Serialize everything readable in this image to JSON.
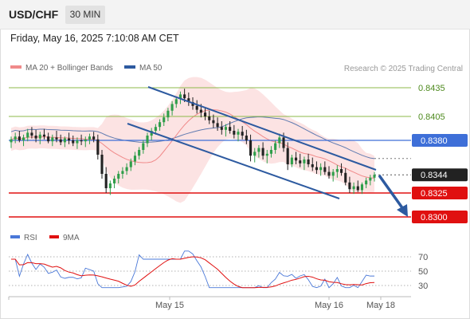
{
  "header": {
    "symbol": "USD/CHF",
    "timeframe": "30 MIN"
  },
  "datetime": "Friday, May 16, 2025 7:10:08 AM CET",
  "legend": {
    "ma20": "MA 20 + Bollinger Bands",
    "ma50": "MA 50",
    "rsi": "RSI",
    "ma9": "9MA"
  },
  "credit": "Research © 2025 Trading Central",
  "colors": {
    "ma20": "#f08a8a",
    "ma50": "#2d5aa0",
    "bands": "#fbdada",
    "target": "#8db84a",
    "pivot": "#3e6fd8",
    "support": "#e01010",
    "last": "#222222",
    "candle_up": "#2f9e4a",
    "candle_down": "#222222"
  },
  "chart_data": {
    "type": "candlestick",
    "instrument": "USD/CHF",
    "timeframe": "30 MIN",
    "y_range": [
      0.829,
      0.8445
    ],
    "price_levels": [
      {
        "label": "0.8435",
        "value": 0.8435,
        "kind": "target"
      },
      {
        "label": "0.8405",
        "value": 0.8405,
        "kind": "target"
      },
      {
        "label": "0.8380",
        "value": 0.838,
        "kind": "pivot"
      },
      {
        "label": "0.8344",
        "value": 0.8344,
        "kind": "last"
      },
      {
        "label": "0.8325",
        "value": 0.8325,
        "kind": "support"
      },
      {
        "label": "0.8300",
        "value": 0.83,
        "kind": "support"
      }
    ],
    "x_tick_labels": [
      "May 15",
      "May 16",
      "May 18"
    ],
    "rsi_ticks": [
      "70",
      "50",
      "30"
    ],
    "candles": [
      [
        0.8378,
        0.8384,
        0.8372,
        0.8381
      ],
      [
        0.8381,
        0.8388,
        0.8377,
        0.8384
      ],
      [
        0.8384,
        0.839,
        0.8378,
        0.838
      ],
      [
        0.838,
        0.8386,
        0.8374,
        0.8383
      ],
      [
        0.8383,
        0.8392,
        0.8379,
        0.8388
      ],
      [
        0.8388,
        0.8394,
        0.8382,
        0.8385
      ],
      [
        0.8385,
        0.8391,
        0.8378,
        0.8382
      ],
      [
        0.8382,
        0.8389,
        0.8376,
        0.8386
      ],
      [
        0.8386,
        0.8392,
        0.8381,
        0.8384
      ],
      [
        0.8384,
        0.8388,
        0.8377,
        0.8379
      ],
      [
        0.8379,
        0.8386,
        0.8374,
        0.8383
      ],
      [
        0.8383,
        0.839,
        0.8378,
        0.8381
      ],
      [
        0.8381,
        0.8386,
        0.8375,
        0.8378
      ],
      [
        0.8378,
        0.8384,
        0.8373,
        0.8382
      ],
      [
        0.8382,
        0.8388,
        0.8376,
        0.838
      ],
      [
        0.838,
        0.8385,
        0.8374,
        0.8377
      ],
      [
        0.8377,
        0.8383,
        0.8371,
        0.838
      ],
      [
        0.838,
        0.8386,
        0.8375,
        0.8379
      ],
      [
        0.8379,
        0.8384,
        0.8373,
        0.8381
      ],
      [
        0.8381,
        0.8387,
        0.8376,
        0.8384
      ],
      [
        0.8384,
        0.8389,
        0.8378,
        0.8381
      ],
      [
        0.8381,
        0.8386,
        0.836,
        0.8365
      ],
      [
        0.8365,
        0.837,
        0.834,
        0.8345
      ],
      [
        0.8345,
        0.8352,
        0.8325,
        0.833
      ],
      [
        0.833,
        0.8338,
        0.8323,
        0.8335
      ],
      [
        0.8335,
        0.8343,
        0.833,
        0.834
      ],
      [
        0.834,
        0.8348,
        0.8335,
        0.8345
      ],
      [
        0.8345,
        0.8352,
        0.834,
        0.8348
      ],
      [
        0.8348,
        0.8356,
        0.8344,
        0.8352
      ],
      [
        0.8352,
        0.8361,
        0.8348,
        0.8358
      ],
      [
        0.8358,
        0.8368,
        0.8354,
        0.8364
      ],
      [
        0.8364,
        0.8373,
        0.836,
        0.837
      ],
      [
        0.837,
        0.838,
        0.8366,
        0.8377
      ],
      [
        0.8377,
        0.8388,
        0.8373,
        0.8385
      ],
      [
        0.8385,
        0.8393,
        0.838,
        0.839
      ],
      [
        0.839,
        0.8397,
        0.8386,
        0.8394
      ],
      [
        0.8394,
        0.8402,
        0.839,
        0.8399
      ],
      [
        0.8399,
        0.8408,
        0.8395,
        0.8404
      ],
      [
        0.8404,
        0.8414,
        0.84,
        0.8411
      ],
      [
        0.8411,
        0.8421,
        0.8406,
        0.8418
      ],
      [
        0.8418,
        0.8426,
        0.8414,
        0.8423
      ],
      [
        0.8423,
        0.8431,
        0.8418,
        0.8428
      ],
      [
        0.8428,
        0.8434,
        0.842,
        0.8424
      ],
      [
        0.8424,
        0.843,
        0.8416,
        0.842
      ],
      [
        0.842,
        0.8425,
        0.8412,
        0.8416
      ],
      [
        0.8416,
        0.8422,
        0.8408,
        0.8412
      ],
      [
        0.8412,
        0.8418,
        0.8404,
        0.8409
      ],
      [
        0.8409,
        0.8415,
        0.8401,
        0.8405
      ],
      [
        0.8405,
        0.8411,
        0.8397,
        0.8401
      ],
      [
        0.8401,
        0.8407,
        0.8393,
        0.8398
      ],
      [
        0.8398,
        0.8404,
        0.839,
        0.8394
      ],
      [
        0.8394,
        0.84,
        0.8386,
        0.8391
      ],
      [
        0.8391,
        0.8397,
        0.8384,
        0.8394
      ],
      [
        0.8394,
        0.84,
        0.8387,
        0.839
      ],
      [
        0.839,
        0.8396,
        0.8382,
        0.8386
      ],
      [
        0.8386,
        0.8392,
        0.8379,
        0.8389
      ],
      [
        0.8389,
        0.8395,
        0.8381,
        0.8385
      ],
      [
        0.8385,
        0.8391,
        0.8376,
        0.838
      ],
      [
        0.838,
        0.8386,
        0.8358,
        0.8364
      ],
      [
        0.8364,
        0.8372,
        0.8357,
        0.8368
      ],
      [
        0.8368,
        0.8375,
        0.8362,
        0.8372
      ],
      [
        0.8372,
        0.8378,
        0.836,
        0.8364
      ],
      [
        0.8364,
        0.837,
        0.8356,
        0.8366
      ],
      [
        0.8366,
        0.8374,
        0.8362,
        0.837
      ],
      [
        0.837,
        0.838,
        0.8366,
        0.8377
      ],
      [
        0.8377,
        0.8387,
        0.8372,
        0.8383
      ],
      [
        0.8383,
        0.8388,
        0.8368,
        0.8372
      ],
      [
        0.8372,
        0.8378,
        0.8349,
        0.8355
      ],
      [
        0.8355,
        0.8365,
        0.8352,
        0.8362
      ],
      [
        0.8362,
        0.8368,
        0.8355,
        0.8359
      ],
      [
        0.8359,
        0.8366,
        0.8352,
        0.8356
      ],
      [
        0.8356,
        0.8363,
        0.8349,
        0.836
      ],
      [
        0.836,
        0.8366,
        0.8352,
        0.8355
      ],
      [
        0.8355,
        0.8362,
        0.8348,
        0.8352
      ],
      [
        0.8352,
        0.8358,
        0.8345,
        0.8349
      ],
      [
        0.8349,
        0.8356,
        0.8343,
        0.8352
      ],
      [
        0.8352,
        0.8358,
        0.8344,
        0.8347
      ],
      [
        0.8347,
        0.8353,
        0.834,
        0.8343
      ],
      [
        0.8343,
        0.835,
        0.8337,
        0.8347
      ],
      [
        0.8347,
        0.8354,
        0.8341,
        0.835
      ],
      [
        0.835,
        0.8356,
        0.8343,
        0.8346
      ],
      [
        0.8346,
        0.8351,
        0.8333,
        0.8336
      ],
      [
        0.8336,
        0.8342,
        0.8325,
        0.8329
      ],
      [
        0.8329,
        0.8336,
        0.8324,
        0.8332
      ],
      [
        0.8332,
        0.8338,
        0.8326,
        0.8328
      ],
      [
        0.8328,
        0.8336,
        0.8324,
        0.8334
      ],
      [
        0.8334,
        0.8341,
        0.833,
        0.8338
      ],
      [
        0.8338,
        0.8344,
        0.8333,
        0.8341
      ],
      [
        0.8341,
        0.8347,
        0.8337,
        0.8344
      ]
    ]
  }
}
